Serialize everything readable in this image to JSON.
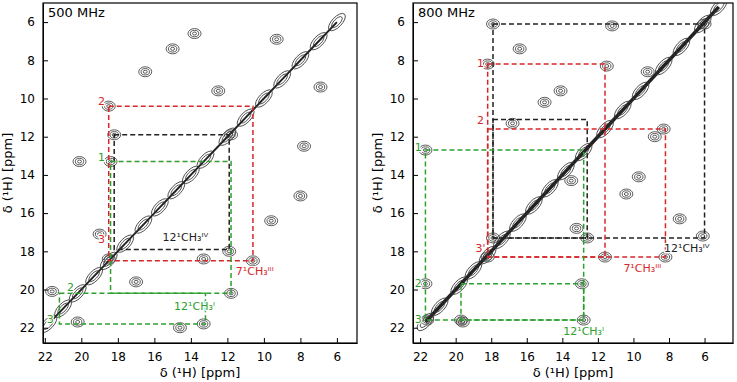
{
  "chart_data": [
    {
      "type": "contour",
      "title": "500 MHz",
      "x_label": "δ (¹H) [ppm]",
      "y_label": "δ (¹H) [ppm]",
      "xlim": [
        22.1,
        4.9
      ],
      "ylim": [
        5.0,
        22.8
      ],
      "xticks": [
        22,
        20,
        18,
        16,
        14,
        12,
        10,
        8,
        6
      ],
      "yticks": [
        6,
        8,
        10,
        12,
        14,
        16,
        18,
        20,
        22
      ],
      "x": [
        18.5,
        10.6,
        18.5,
        11.9,
        18.2,
        11.8,
        13.3,
        18.4,
        20.1,
        11.8,
        21.6,
        13.3,
        20.2,
        16.5,
        9.6,
        15.0,
        8.0,
        13.8,
        9.3,
        6.9,
        12.5,
        7.8,
        17.0,
        19.0,
        14.6
      ],
      "y": [
        10.4,
        18.5,
        18.4,
        18.0,
        11.9,
        11.9,
        18.4,
        13.3,
        13.3,
        20.2,
        20.1,
        21.8,
        21.7,
        8.6,
        16.4,
        7.4,
        15.1,
        6.6,
        6.9,
        9.4,
        9.6,
        12.5,
        19.6,
        17.1,
        22.0
      ],
      "diagonal": [
        21.8,
        21.0,
        20.2,
        19.3,
        18.5,
        17.6,
        16.6,
        15.7,
        14.8,
        14.0,
        13.2,
        12.0,
        11.0,
        10.0,
        9.0,
        8.0,
        7.0,
        6.0
      ],
      "systems": [
        {
          "color": "#d62728",
          "line_style": "dashed",
          "rects": [
            {
              "x": [
                18.5,
                10.6
              ],
              "y": [
                10.4,
                18.5
              ]
            }
          ],
          "labels": [
            {
              "text": "2",
              "x": 18.9,
              "y": 10.2
            },
            {
              "text": "3",
              "x": 18.9,
              "y": 17.4
            },
            {
              "text": "7¹CH₃ᴵᴵᴵ",
              "x": 10.5,
              "y": 19.1
            }
          ]
        },
        {
          "color": "#222222",
          "line_style": "dashed",
          "rects": [
            {
              "x": [
                18.2,
                11.9
              ],
              "y": [
                11.9,
                17.9
              ]
            }
          ],
          "labels": [
            {
              "text": "12¹CH₃ᴵⱽ",
              "x": 14.3,
              "y": 17.3
            }
          ]
        },
        {
          "color": "#2ca02c",
          "line_style": "dashed",
          "rects": [
            {
              "x": [
                18.4,
                11.8
              ],
              "y": [
                13.3,
                20.2
              ]
            },
            {
              "x": [
                21.2,
                13.2
              ],
              "y": [
                20.2,
                21.8
              ]
            }
          ],
          "labels": [
            {
              "text": "1",
              "x": 18.9,
              "y": 13.1
            },
            {
              "text": "2",
              "x": 20.6,
              "y": 19.9
            },
            {
              "text": "3",
              "x": 21.7,
              "y": 21.6
            },
            {
              "text": "12¹CH₃ᴵ",
              "x": 13.8,
              "y": 20.9
            }
          ]
        }
      ]
    },
    {
      "type": "contour",
      "title": "800 MHz",
      "x_label": "δ (¹H) [ppm]",
      "y_label": "δ (¹H) [ppm]",
      "xlim": [
        22.4,
        4.4
      ],
      "ylim": [
        5.0,
        22.8
      ],
      "xticks": [
        22,
        20,
        18,
        16,
        14,
        12,
        10,
        8,
        6
      ],
      "yticks": [
        6,
        8,
        10,
        12,
        14,
        16,
        18,
        20,
        22
      ],
      "x": [
        18.2,
        11.6,
        18.2,
        8.2,
        11.5,
        8.3,
        17.9,
        6.0,
        17.9,
        12.6,
        11.2,
        6.1,
        21.7,
        12.8,
        19.7,
        12.9,
        21.7,
        19.6,
        21.6,
        14.1,
        9.7,
        15.0,
        10.4,
        7.4,
        16.4,
        9.2,
        13.5,
        8.8,
        16.8,
        13.2
      ],
      "y": [
        8.2,
        18.3,
        18.3,
        18.3,
        8.3,
        11.6,
        6.1,
        6.1,
        17.3,
        17.3,
        6.2,
        17.2,
        12.7,
        21.6,
        21.6,
        19.7,
        19.7,
        21.7,
        21.6,
        9.6,
        14.1,
        10.2,
        15.0,
        16.3,
        7.4,
        8.6,
        14.3,
        12.0,
        11.3,
        16.8
      ],
      "diagonal": [
        21.7,
        20.9,
        19.8,
        19.0,
        18.2,
        17.4,
        16.5,
        15.6,
        14.7,
        13.8,
        12.8,
        11.6,
        10.6,
        9.6,
        8.3,
        7.3,
        6.1,
        5.2
      ],
      "systems": [
        {
          "color": "#222222",
          "line_style": "dashed",
          "rects": [
            {
              "x": [
                17.9,
                6.0
              ],
              "y": [
                6.1,
                17.3
              ]
            },
            {
              "x": [
                17.9,
                12.6
              ],
              "y": [
                11.1,
                17.3
              ]
            }
          ],
          "labels": [
            {
              "text": "12¹CH₃ᴵⱽ",
              "x": 7.0,
              "y": 17.9
            }
          ]
        },
        {
          "color": "#d62728",
          "line_style": "dashed",
          "rects": [
            {
              "x": [
                18.2,
                11.6
              ],
              "y": [
                8.2,
                18.3
              ]
            },
            {
              "x": [
                18.2,
                8.2
              ],
              "y": [
                11.6,
                18.3
              ]
            }
          ],
          "labels": [
            {
              "text": "1",
              "x": 18.6,
              "y": 8.2
            },
            {
              "text": "2",
              "x": 18.6,
              "y": 11.2
            },
            {
              "text": "3'",
              "x": 18.6,
              "y": 17.9
            },
            {
              "text": "7¹CH₃ᴵᴵᴵ",
              "x": 9.5,
              "y": 18.9
            }
          ]
        },
        {
          "color": "#2ca02c",
          "line_style": "dashed",
          "rects": [
            {
              "x": [
                21.7,
                12.8
              ],
              "y": [
                12.7,
                21.6
              ]
            },
            {
              "x": [
                19.7,
                12.8
              ],
              "y": [
                19.7,
                21.6
              ]
            }
          ],
          "labels": [
            {
              "text": "1",
              "x": 22.1,
              "y": 12.6
            },
            {
              "text": "2",
              "x": 22.1,
              "y": 19.7
            },
            {
              "text": "3",
              "x": 22.1,
              "y": 21.6
            },
            {
              "text": "12¹CH₃ᴵ",
              "x": 12.8,
              "y": 22.2
            }
          ]
        }
      ]
    }
  ]
}
